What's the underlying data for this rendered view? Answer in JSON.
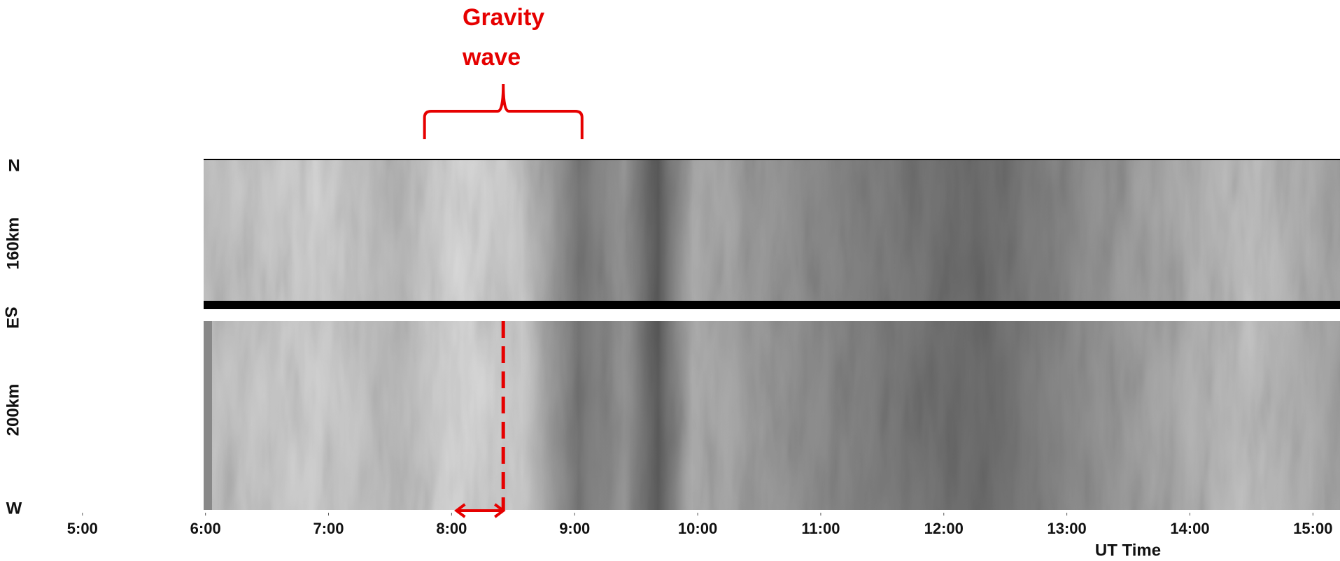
{
  "chart_data": {
    "type": "keogram",
    "xlabel": "UT Time",
    "xlim": [
      4.33,
      15.22
    ],
    "xticks": [
      {
        "value": 5,
        "label": "5:00"
      },
      {
        "value": 6,
        "label": "6:00"
      },
      {
        "value": 7,
        "label": "7:00"
      },
      {
        "value": 8,
        "label": "8:00"
      },
      {
        "value": 9,
        "label": "9:00"
      },
      {
        "value": 10,
        "label": "10:00"
      },
      {
        "value": 11,
        "label": "11:00"
      },
      {
        "value": 12,
        "label": "12:00"
      },
      {
        "value": 13,
        "label": "13:00"
      },
      {
        "value": 14,
        "label": "14:00"
      },
      {
        "value": 15,
        "label": "15:00"
      }
    ],
    "y_labels": {
      "north": "N",
      "top_panel": "160km",
      "south": "S",
      "east": "E",
      "bottom_panel": "200km",
      "west": "W"
    },
    "annotation": {
      "text": [
        "Gravity",
        "wave"
      ],
      "span": [
        7.78,
        9.06
      ],
      "dashed_line": 8.42,
      "arrow": [
        8.04,
        8.42
      ],
      "color": "#e60000"
    }
  }
}
